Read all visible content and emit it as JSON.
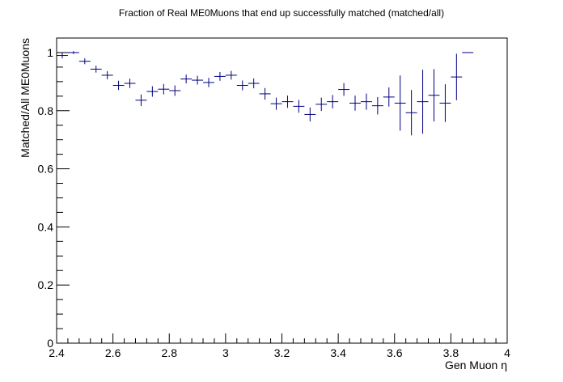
{
  "chart_data": {
    "type": "scatter",
    "title": "Fraction of Real ME0Muons that end up successfully matched (matched/all)",
    "xlabel": "Gen Muon η",
    "ylabel": "Matched/All ME0Muons",
    "xlim": [
      2.4,
      4.0
    ],
    "ylim": [
      0,
      1.05
    ],
    "x_ticks": [
      "2.4",
      "2.6",
      "2.8",
      "3",
      "3.2",
      "3.4",
      "3.6",
      "3.8",
      "4"
    ],
    "y_ticks": [
      "0",
      "0.2",
      "0.4",
      "0.6",
      "0.8",
      "1"
    ],
    "grid": false,
    "marker_color": "#000080",
    "bin_width": 0.04,
    "points": [
      {
        "x": 2.42,
        "y": 0.99,
        "err": 0.01
      },
      {
        "x": 2.46,
        "y": 1.0,
        "err": 0.005
      },
      {
        "x": 2.5,
        "y": 0.97,
        "err": 0.01
      },
      {
        "x": 2.54,
        "y": 0.943,
        "err": 0.012
      },
      {
        "x": 2.58,
        "y": 0.922,
        "err": 0.014
      },
      {
        "x": 2.62,
        "y": 0.887,
        "err": 0.016
      },
      {
        "x": 2.66,
        "y": 0.894,
        "err": 0.016
      },
      {
        "x": 2.7,
        "y": 0.836,
        "err": 0.02
      },
      {
        "x": 2.74,
        "y": 0.866,
        "err": 0.018
      },
      {
        "x": 2.78,
        "y": 0.874,
        "err": 0.018
      },
      {
        "x": 2.82,
        "y": 0.869,
        "err": 0.018
      },
      {
        "x": 2.86,
        "y": 0.909,
        "err": 0.015
      },
      {
        "x": 2.9,
        "y": 0.905,
        "err": 0.015
      },
      {
        "x": 2.94,
        "y": 0.897,
        "err": 0.016
      },
      {
        "x": 2.98,
        "y": 0.918,
        "err": 0.015
      },
      {
        "x": 3.02,
        "y": 0.922,
        "err": 0.015
      },
      {
        "x": 3.06,
        "y": 0.887,
        "err": 0.017
      },
      {
        "x": 3.1,
        "y": 0.894,
        "err": 0.017
      },
      {
        "x": 3.14,
        "y": 0.858,
        "err": 0.02
      },
      {
        "x": 3.18,
        "y": 0.824,
        "err": 0.021
      },
      {
        "x": 3.22,
        "y": 0.831,
        "err": 0.021
      },
      {
        "x": 3.26,
        "y": 0.815,
        "err": 0.022
      },
      {
        "x": 3.3,
        "y": 0.787,
        "err": 0.024
      },
      {
        "x": 3.34,
        "y": 0.822,
        "err": 0.023
      },
      {
        "x": 3.38,
        "y": 0.831,
        "err": 0.023
      },
      {
        "x": 3.42,
        "y": 0.873,
        "err": 0.022
      },
      {
        "x": 3.46,
        "y": 0.826,
        "err": 0.026
      },
      {
        "x": 3.5,
        "y": 0.831,
        "err": 0.028
      },
      {
        "x": 3.54,
        "y": 0.817,
        "err": 0.03
      },
      {
        "x": 3.58,
        "y": 0.847,
        "err": 0.033
      },
      {
        "x": 3.62,
        "y": 0.826,
        "err": 0.095
      },
      {
        "x": 3.66,
        "y": 0.793,
        "err": 0.078
      },
      {
        "x": 3.7,
        "y": 0.831,
        "err": 0.11
      },
      {
        "x": 3.74,
        "y": 0.853,
        "err": 0.09
      },
      {
        "x": 3.78,
        "y": 0.826,
        "err": 0.065
      },
      {
        "x": 3.82,
        "y": 0.916,
        "err": 0.08
      },
      {
        "x": 3.86,
        "y": 1.0,
        "err": 0.0
      }
    ]
  }
}
